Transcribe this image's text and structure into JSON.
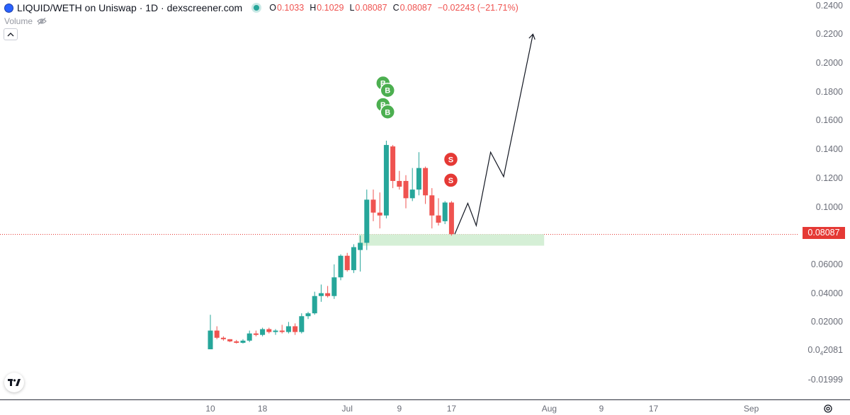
{
  "header": {
    "title": "LIQUID/WETH on Uniswap · 1D · dexscreener.com",
    "ohlc": [
      {
        "key": "O",
        "value": "0.1033"
      },
      {
        "key": "H",
        "value": "0.1029"
      },
      {
        "key": "L",
        "value": "0.08087"
      },
      {
        "key": "C",
        "value": "0.08087"
      },
      {
        "key": "",
        "value": "−0.02243 (−21.71%)"
      }
    ],
    "volume_label": "Volume"
  },
  "colors": {
    "up": "#26a69a",
    "down": "#ef5350",
    "marker_buy": "#4caf50",
    "marker_sell": "#e53935",
    "zone": "#d5efd6",
    "price_line": "#e53935"
  },
  "current_price_label": "0.08087",
  "y_axis_labels": [
    {
      "text": "0.2400",
      "value": 0.24
    },
    {
      "text": "0.2200",
      "value": 0.22
    },
    {
      "text": "0.2000",
      "value": 0.2
    },
    {
      "text": "0.1800",
      "value": 0.18
    },
    {
      "text": "0.1600",
      "value": 0.16
    },
    {
      "text": "0.1400",
      "value": 0.14
    },
    {
      "text": "0.1200",
      "value": 0.12
    },
    {
      "text": "0.1000",
      "value": 0.1
    },
    {
      "text": "0.06000",
      "value": 0.06
    },
    {
      "text": "0.04000",
      "value": 0.04
    },
    {
      "text": "0.02000",
      "value": 0.02
    },
    {
      "text": "-0.01999",
      "value": -0.02
    }
  ],
  "y_small_label": {
    "pre": "0.0",
    "sub": "4",
    "post": "2081",
    "value": 0.0
  },
  "x_axis_labels": [
    {
      "text": "10",
      "day": 0
    },
    {
      "text": "18",
      "day": 8
    },
    {
      "text": "Jul",
      "day": 21
    },
    {
      "text": "9",
      "day": 29
    },
    {
      "text": "17",
      "day": 37
    },
    {
      "text": "Aug",
      "day": 52
    },
    {
      "text": "9",
      "day": 60
    },
    {
      "text": "17",
      "day": 68
    },
    {
      "text": "Sep",
      "day": 83
    }
  ],
  "chart_data": {
    "type": "candlestick",
    "x_unit": "day index from Jun 10",
    "candles": [
      {
        "d": 0,
        "o": 0.001,
        "h": 0.025,
        "l": 0.001,
        "c": 0.014
      },
      {
        "d": 1,
        "o": 0.014,
        "h": 0.017,
        "l": 0.008,
        "c": 0.009
      },
      {
        "d": 2,
        "o": 0.009,
        "h": 0.01,
        "l": 0.007,
        "c": 0.008
      },
      {
        "d": 3,
        "o": 0.008,
        "h": 0.008,
        "l": 0.006,
        "c": 0.0065
      },
      {
        "d": 4,
        "o": 0.0065,
        "h": 0.0075,
        "l": 0.005,
        "c": 0.0055
      },
      {
        "d": 5,
        "o": 0.0055,
        "h": 0.008,
        "l": 0.005,
        "c": 0.007
      },
      {
        "d": 6,
        "o": 0.007,
        "h": 0.014,
        "l": 0.006,
        "c": 0.012
      },
      {
        "d": 7,
        "o": 0.012,
        "h": 0.014,
        "l": 0.01,
        "c": 0.011
      },
      {
        "d": 8,
        "o": 0.011,
        "h": 0.016,
        "l": 0.01,
        "c": 0.015
      },
      {
        "d": 9,
        "o": 0.015,
        "h": 0.016,
        "l": 0.012,
        "c": 0.013
      },
      {
        "d": 10,
        "o": 0.013,
        "h": 0.015,
        "l": 0.011,
        "c": 0.014
      },
      {
        "d": 11,
        "o": 0.014,
        "h": 0.018,
        "l": 0.012,
        "c": 0.013
      },
      {
        "d": 12,
        "o": 0.013,
        "h": 0.02,
        "l": 0.012,
        "c": 0.017
      },
      {
        "d": 13,
        "o": 0.017,
        "h": 0.019,
        "l": 0.011,
        "c": 0.013
      },
      {
        "d": 14,
        "o": 0.013,
        "h": 0.026,
        "l": 0.012,
        "c": 0.024
      },
      {
        "d": 15,
        "o": 0.024,
        "h": 0.027,
        "l": 0.022,
        "c": 0.026
      },
      {
        "d": 16,
        "o": 0.026,
        "h": 0.041,
        "l": 0.025,
        "c": 0.038
      },
      {
        "d": 17,
        "o": 0.038,
        "h": 0.046,
        "l": 0.034,
        "c": 0.04
      },
      {
        "d": 18,
        "o": 0.04,
        "h": 0.045,
        "l": 0.037,
        "c": 0.038
      },
      {
        "d": 19,
        "o": 0.038,
        "h": 0.06,
        "l": 0.036,
        "c": 0.051
      },
      {
        "d": 20,
        "o": 0.051,
        "h": 0.067,
        "l": 0.049,
        "c": 0.066
      },
      {
        "d": 21,
        "o": 0.066,
        "h": 0.068,
        "l": 0.055,
        "c": 0.056
      },
      {
        "d": 22,
        "o": 0.056,
        "h": 0.074,
        "l": 0.054,
        "c": 0.072
      },
      {
        "d": 23,
        "o": 0.07,
        "h": 0.08,
        "l": 0.055,
        "c": 0.075
      },
      {
        "d": 24,
        "o": 0.075,
        "h": 0.112,
        "l": 0.07,
        "c": 0.105
      },
      {
        "d": 25,
        "o": 0.105,
        "h": 0.112,
        "l": 0.09,
        "c": 0.096
      },
      {
        "d": 26,
        "o": 0.096,
        "h": 0.11,
        "l": 0.085,
        "c": 0.094
      },
      {
        "d": 27,
        "o": 0.094,
        "h": 0.146,
        "l": 0.092,
        "c": 0.143
      },
      {
        "d": 28,
        "o": 0.142,
        "h": 0.143,
        "l": 0.113,
        "c": 0.118
      },
      {
        "d": 29,
        "o": 0.118,
        "h": 0.125,
        "l": 0.112,
        "c": 0.114
      },
      {
        "d": 30,
        "o": 0.118,
        "h": 0.122,
        "l": 0.099,
        "c": 0.106
      },
      {
        "d": 31,
        "o": 0.106,
        "h": 0.127,
        "l": 0.104,
        "c": 0.112
      },
      {
        "d": 32,
        "o": 0.112,
        "h": 0.138,
        "l": 0.108,
        "c": 0.127
      },
      {
        "d": 33,
        "o": 0.127,
        "h": 0.128,
        "l": 0.102,
        "c": 0.108
      },
      {
        "d": 34,
        "o": 0.108,
        "h": 0.113,
        "l": 0.085,
        "c": 0.094
      },
      {
        "d": 35,
        "o": 0.094,
        "h": 0.106,
        "l": 0.087,
        "c": 0.089
      },
      {
        "d": 36,
        "o": 0.09,
        "h": 0.104,
        "l": 0.088,
        "c": 0.103
      },
      {
        "d": 37,
        "o": 0.103,
        "h": 0.104,
        "l": 0.08,
        "c": 0.081
      }
    ],
    "current_price": 0.08087,
    "support_zone": {
      "from_day": 23,
      "to_day": 51,
      "low": 0.073,
      "high": 0.081
    },
    "projection_path": [
      {
        "d": 37.5,
        "p": 0.081
      },
      {
        "d": 39.5,
        "p": 0.1025
      },
      {
        "d": 40.8,
        "p": 0.087
      },
      {
        "d": 43.0,
        "p": 0.138
      },
      {
        "d": 45.0,
        "p": 0.121
      },
      {
        "d": 49.5,
        "p": 0.22
      }
    ],
    "markers": [
      {
        "d": 26.5,
        "p": 0.186,
        "label": "B",
        "kind": "buy"
      },
      {
        "d": 27.2,
        "p": 0.181,
        "label": "B",
        "kind": "buy"
      },
      {
        "d": 26.5,
        "p": 0.171,
        "label": "B",
        "kind": "buy"
      },
      {
        "d": 27.2,
        "p": 0.166,
        "label": "B",
        "kind": "buy"
      },
      {
        "d": 36.9,
        "p": 0.133,
        "label": "S",
        "kind": "sell"
      },
      {
        "d": 36.9,
        "p": 0.1185,
        "label": "S",
        "kind": "sell"
      }
    ],
    "ylim": [
      -0.025,
      0.245
    ],
    "grid": false
  }
}
